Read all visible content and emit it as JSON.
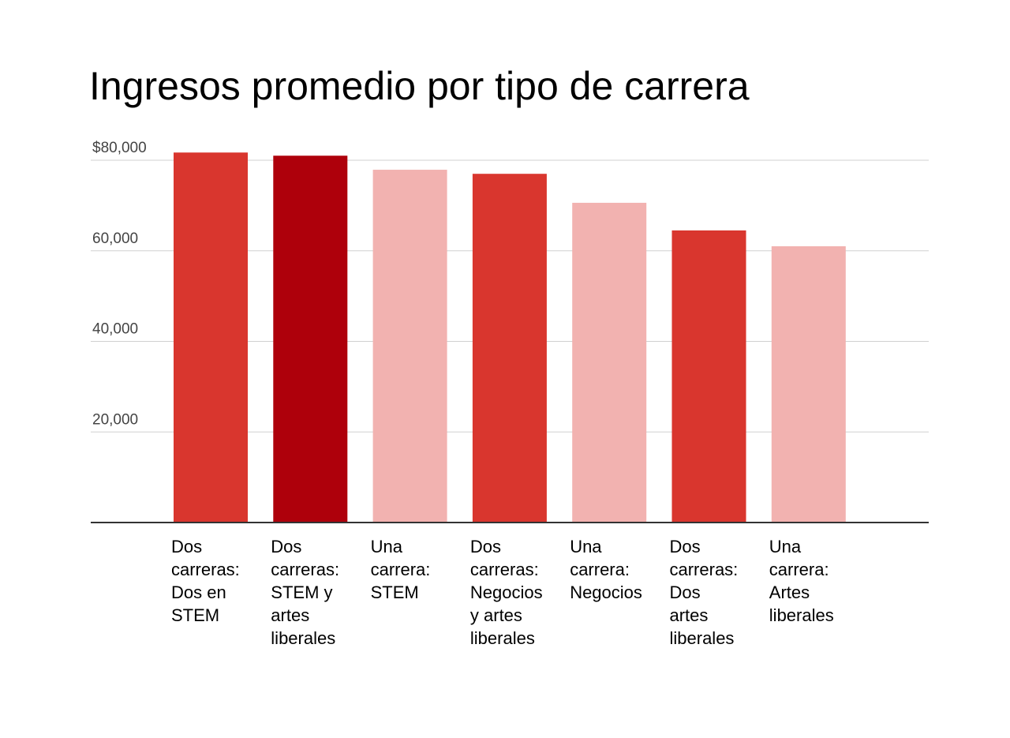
{
  "chart_data": {
    "type": "bar",
    "title": "Ingresos promedio por tipo de carrera",
    "xlabel": "",
    "ylabel": "",
    "ylim": [
      0,
      80000
    ],
    "yticks": [
      20000,
      40000,
      60000,
      80000
    ],
    "ytick_labels": [
      "20,000",
      "40,000",
      "60,000",
      "$80,000"
    ],
    "grid": true,
    "legend": "none",
    "categories": [
      "Dos\ncarreras:\nDos en\nSTEM",
      "Dos\ncarreras:\nSTEM y\nartes\nliberales",
      "Una\ncarrera:\nSTEM",
      "Dos\ncarreras:\nNegocios\ny artes\nliberales",
      "Una\ncarrera:\nNegocios",
      "Dos\ncarreras:\nDos\nartes\nliberales",
      "Una\ncarrera:\nArtes\nliberales"
    ],
    "values": [
      81700,
      81000,
      77900,
      77000,
      70600,
      64500,
      61000
    ],
    "colors": [
      "#d9362e",
      "#ae000b",
      "#f2b2b0",
      "#d9362e",
      "#f2b2b0",
      "#d9362e",
      "#f2b2b0"
    ]
  }
}
